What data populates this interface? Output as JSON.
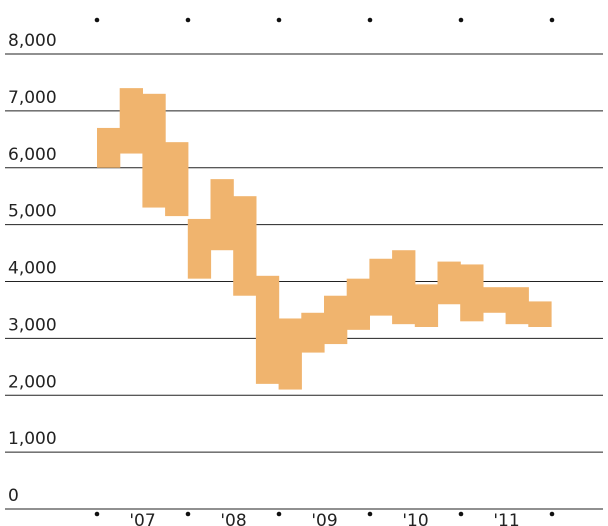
{
  "chart_data": {
    "type": "area",
    "title": "",
    "xlabel": "",
    "ylabel": "",
    "ylim": [
      0,
      8000
    ],
    "yticks": [
      {
        "value": 0,
        "label": "0"
      },
      {
        "value": 1000,
        "label": "1,000"
      },
      {
        "value": 2000,
        "label": "2,000"
      },
      {
        "value": 3000,
        "label": "3,000"
      },
      {
        "value": 4000,
        "label": "4,000"
      },
      {
        "value": 5000,
        "label": "5,000"
      },
      {
        "value": 6000,
        "label": "6,000"
      },
      {
        "value": 7000,
        "label": "7,000"
      },
      {
        "value": 8000,
        "label": "8,000"
      }
    ],
    "xticks": [
      "'07",
      "'08",
      "'09",
      "'10",
      "'11"
    ],
    "grid": true,
    "band_color": "#f0b46e",
    "bands": [
      {
        "period": "2006 Q3",
        "low": 6000,
        "high": 6700
      },
      {
        "period": "2006 Q4",
        "low": 6250,
        "high": 7400
      },
      {
        "period": "2007 Q1",
        "low": 5300,
        "high": 7300
      },
      {
        "period": "2007 Q2",
        "low": 5150,
        "high": 6450
      },
      {
        "period": "2007 Q3",
        "low": 4050,
        "high": 5100
      },
      {
        "period": "2007 Q4",
        "low": 4550,
        "high": 5800
      },
      {
        "period": "2008 Q1",
        "low": 3750,
        "high": 5500
      },
      {
        "period": "2008 Q2",
        "low": 2200,
        "high": 4100
      },
      {
        "period": "2008 Q3",
        "low": 2100,
        "high": 3350
      },
      {
        "period": "2008 Q4",
        "low": 2750,
        "high": 3450
      },
      {
        "period": "2009 Q1",
        "low": 2900,
        "high": 3750
      },
      {
        "period": "2009 Q2",
        "low": 3150,
        "high": 4050
      },
      {
        "period": "2009 Q3",
        "low": 3400,
        "high": 4400
      },
      {
        "period": "2009 Q4",
        "low": 3250,
        "high": 4550
      },
      {
        "period": "2010 Q1",
        "low": 3200,
        "high": 3950
      },
      {
        "period": "2010 Q2",
        "low": 3600,
        "high": 4350
      },
      {
        "period": "2010 Q3",
        "low": 3300,
        "high": 4300
      },
      {
        "period": "2010 Q4",
        "low": 3450,
        "high": 3900
      },
      {
        "period": "2011 Q1",
        "low": 3250,
        "high": 3900
      },
      {
        "period": "2011 Q2",
        "low": 3200,
        "high": 3650
      }
    ]
  }
}
